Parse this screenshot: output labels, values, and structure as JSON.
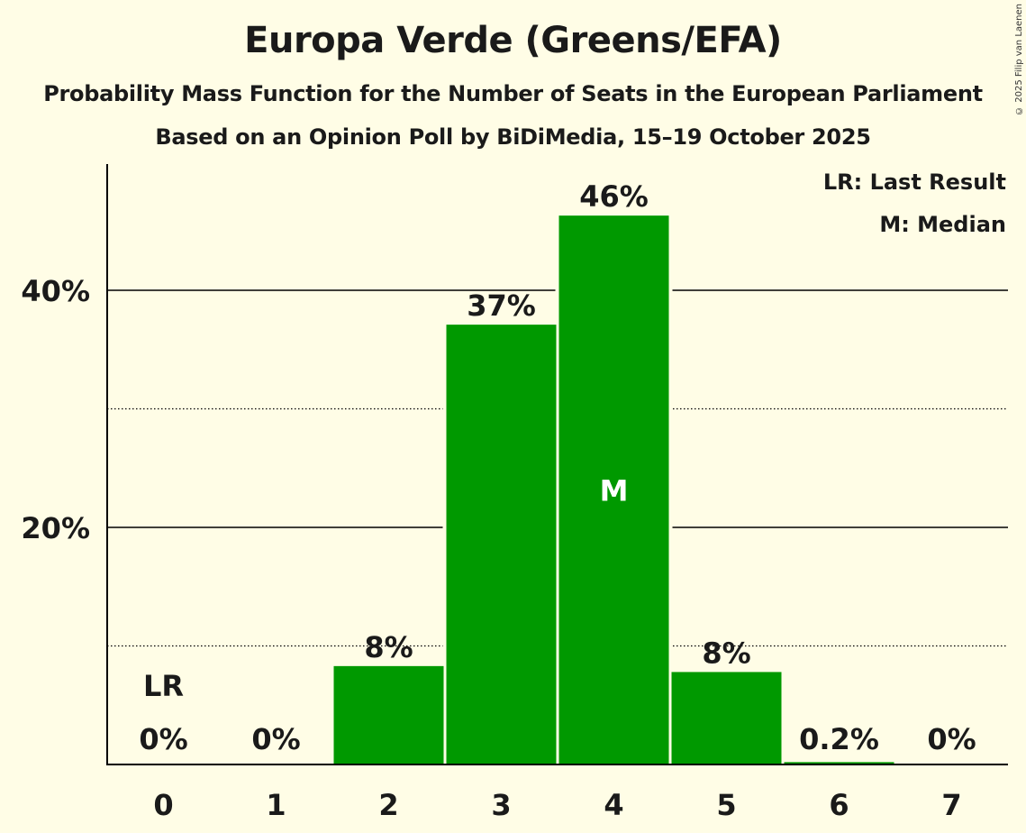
{
  "chart_data": {
    "type": "bar",
    "title": "Europa Verde (Greens/EFA)",
    "subtitle": "Probability Mass Function for the Number of Seats in the European Parliament",
    "subtitle2": "Based on an Opinion Poll by BiDiMedia, 15–19 October 2025",
    "copyright": "© 2025 Filip van Laenen",
    "categories": [
      "0",
      "1",
      "2",
      "3",
      "4",
      "5",
      "6",
      "7"
    ],
    "values": [
      0,
      0,
      8.3,
      37.1,
      46.3,
      7.8,
      0.2,
      0
    ],
    "value_labels": [
      "0%",
      "0%",
      "8%",
      "37%",
      "46%",
      "8%",
      "0.2%",
      "0%"
    ],
    "ylim": [
      0,
      50
    ],
    "major_ticks": [
      20,
      40
    ],
    "major_tick_labels": [
      "20%",
      "40%"
    ],
    "minor_gridlines": [
      10,
      30
    ],
    "last_result_index": 0,
    "last_result_marker": "LR",
    "median_index": 4,
    "median_marker": "M",
    "legend": [
      "LR: Last Result",
      "M: Median"
    ],
    "bar_color": "#009900",
    "background_color": "#fffde6",
    "xlabel": "",
    "ylabel": ""
  }
}
